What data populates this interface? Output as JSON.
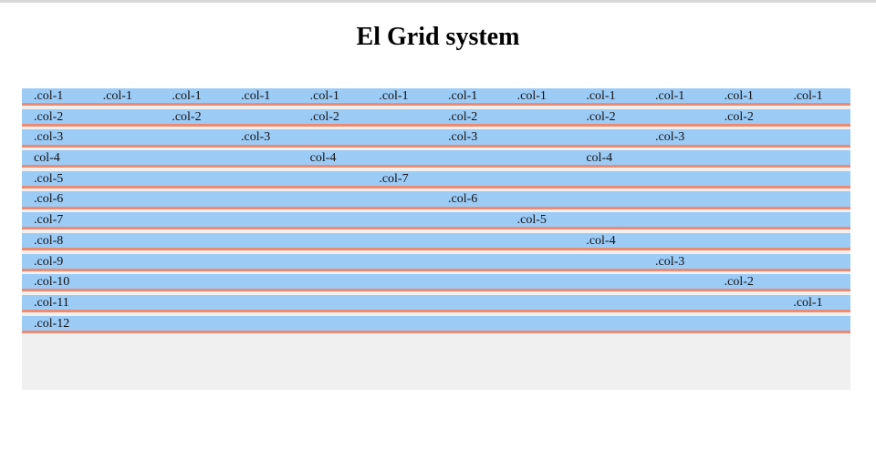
{
  "page": {
    "title": "El Grid system"
  },
  "grid": {
    "columns": 12,
    "rows": [
      [
        "12",
        ".col-1",
        ".col-1",
        ".col-1",
        ".col-1",
        ".col-1",
        ".col-1",
        ".col-1",
        ".col-1",
        ".col-1",
        ".col-1",
        ".col-1",
        ".col-1"
      ],
      [
        "6",
        ".col-2",
        ".col-2",
        ".col-2",
        ".col-2",
        ".col-2",
        ".col-2"
      ],
      [
        "4",
        ".col-3",
        ".col-3",
        ".col-3",
        ".col-3"
      ],
      [
        "3",
        "col-4",
        "col-4",
        "col-4"
      ],
      [
        "2",
        ".col-5",
        ".col-7"
      ],
      [
        "2",
        ".col-6",
        ".col-6"
      ],
      [
        "2",
        ".col-7",
        ".col-5"
      ],
      [
        "2",
        ".col-8",
        ".col-4"
      ],
      [
        "2",
        ".col-9",
        ".col-3"
      ],
      [
        "2",
        ".col-10",
        ".col-2"
      ],
      [
        "2",
        ".col-11",
        ".col-1"
      ],
      [
        "1",
        ".col-12"
      ]
    ],
    "spans": [
      [
        1,
        1,
        1,
        1,
        1,
        1,
        1,
        1,
        1,
        1,
        1,
        1
      ],
      [
        2,
        2,
        2,
        2,
        2,
        2
      ],
      [
        3,
        3,
        3,
        3
      ],
      [
        4,
        4,
        4
      ],
      [
        5,
        7
      ],
      [
        6,
        6
      ],
      [
        7,
        5
      ],
      [
        8,
        4
      ],
      [
        9,
        3
      ],
      [
        10,
        2
      ],
      [
        11,
        1
      ],
      [
        12
      ]
    ]
  },
  "colors": {
    "row_fill": "#9ccbf6",
    "row_border": "#ec8a72",
    "container_bg": "#f0f0f0"
  }
}
